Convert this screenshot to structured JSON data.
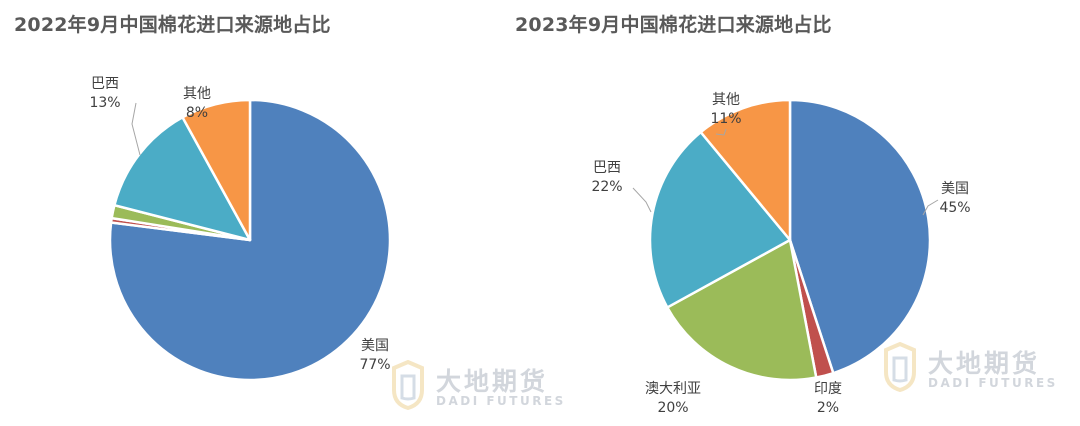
{
  "chart_data": [
    {
      "type": "pie",
      "title": "2022年9月中国棉花进口来源地占比",
      "slices": [
        {
          "name": "美国",
          "value": 77,
          "label": "77%",
          "color": "#4f81bd"
        },
        {
          "name": "印度",
          "value": 0.5,
          "label": "",
          "color": "#c0504d"
        },
        {
          "name": "澳大利亚",
          "value": 1.5,
          "label": "",
          "color": "#9bbb59"
        },
        {
          "name": "巴西",
          "value": 13,
          "label": "13%",
          "color": "#4bacc6"
        },
        {
          "name": "其他",
          "value": 8,
          "label": "8%",
          "color": "#f79646"
        }
      ]
    },
    {
      "type": "pie",
      "title": "2023年9月中国棉花进口来源地占比",
      "slices": [
        {
          "name": "美国",
          "value": 45,
          "label": "45%",
          "color": "#4f81bd"
        },
        {
          "name": "印度",
          "value": 2,
          "label": "2%",
          "color": "#c0504d"
        },
        {
          "name": "澳大利亚",
          "value": 20,
          "label": "20%",
          "color": "#9bbb59"
        },
        {
          "name": "巴西",
          "value": 22,
          "label": "22%",
          "color": "#4bacc6"
        },
        {
          "name": "其他",
          "value": 11,
          "label": "11%",
          "color": "#f79646"
        }
      ]
    }
  ],
  "watermark": {
    "brand": "大地期货",
    "brand_en": "DADI FUTURES"
  }
}
